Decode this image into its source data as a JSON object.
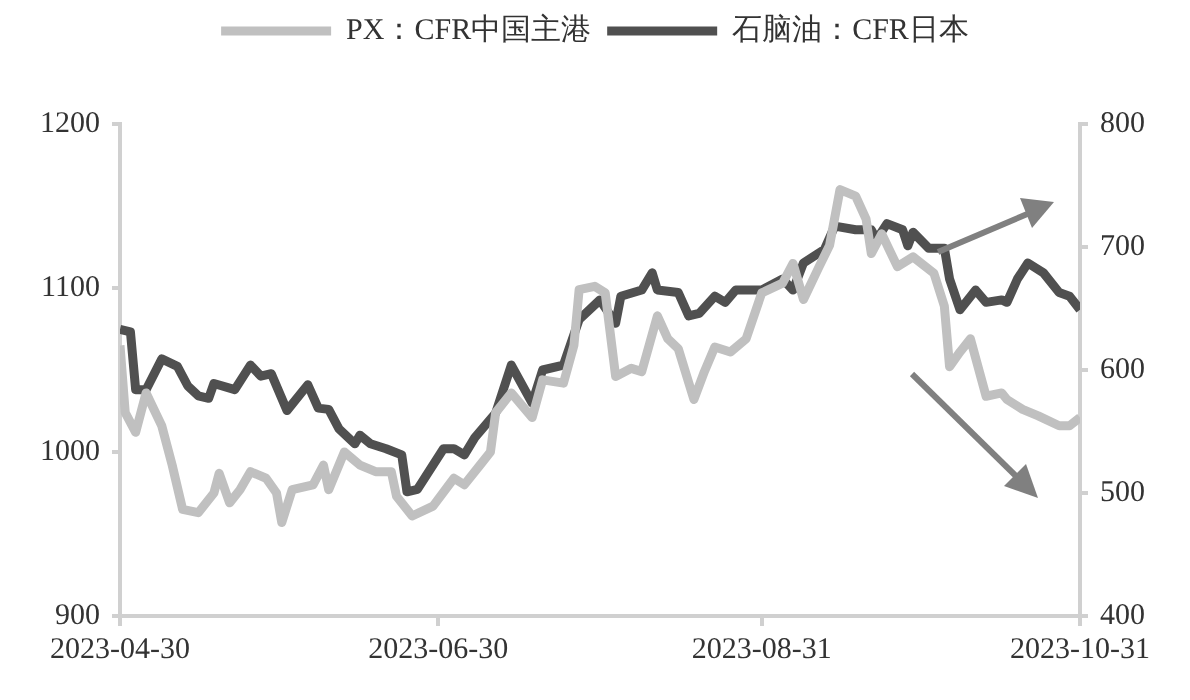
{
  "chart_data": {
    "type": "line",
    "legend": "top",
    "grid": false,
    "marker": "none",
    "line_style": "solid",
    "xlim": [
      "2023-04-30",
      "2023-10-31"
    ],
    "xticks": [
      "2023-04-30",
      "2023-06-30",
      "2023-08-31",
      "2023-10-31"
    ],
    "ylim": [
      900,
      1200
    ],
    "yticks": [
      900,
      1000,
      1100,
      1200
    ],
    "y2lim": [
      400,
      800
    ],
    "y2ticks": [
      400,
      500,
      600,
      700,
      800
    ],
    "series": [
      {
        "name": "PX：CFR中国主港",
        "color": "#c0c0c0",
        "x": [
          "2023-04-30",
          "2023-05-01",
          "2023-05-03",
          "2023-05-05",
          "2023-05-08",
          "2023-05-10",
          "2023-05-12",
          "2023-05-15",
          "2023-05-18",
          "2023-05-19",
          "2023-05-21",
          "2023-05-23",
          "2023-05-25",
          "2023-05-28",
          "2023-05-30",
          "2023-05-31",
          "2023-06-02",
          "2023-06-06",
          "2023-06-08",
          "2023-06-09",
          "2023-06-12",
          "2023-06-15",
          "2023-06-18",
          "2023-06-21",
          "2023-06-22",
          "2023-06-25",
          "2023-06-29",
          "2023-07-03",
          "2023-07-05",
          "2023-07-08",
          "2023-07-10",
          "2023-07-11",
          "2023-07-14",
          "2023-07-18",
          "2023-07-20",
          "2023-07-24",
          "2023-07-26",
          "2023-07-27",
          "2023-07-30",
          "2023-08-01",
          "2023-08-03",
          "2023-08-06",
          "2023-08-08",
          "2023-08-11",
          "2023-08-13",
          "2023-08-15",
          "2023-08-18",
          "2023-08-20",
          "2023-08-22",
          "2023-08-25",
          "2023-08-28",
          "2023-08-31",
          "2023-09-04",
          "2023-09-06",
          "2023-09-08",
          "2023-09-11",
          "2023-09-13",
          "2023-09-15",
          "2023-09-18",
          "2023-09-20",
          "2023-09-21",
          "2023-09-23",
          "2023-09-26",
          "2023-09-29",
          "2023-10-03",
          "2023-10-05",
          "2023-10-06",
          "2023-10-08",
          "2023-10-10",
          "2023-10-13",
          "2023-10-16",
          "2023-10-17",
          "2023-10-20",
          "2023-10-23",
          "2023-10-27",
          "2023-10-29",
          "2023-10-31"
        ],
        "values": [
          1065,
          1024,
          1012,
          1036,
          1016,
          992,
          965,
          963,
          975,
          987,
          969,
          977,
          988,
          984,
          975,
          957,
          977,
          980,
          992,
          977,
          1000,
          992,
          988,
          988,
          973,
          961,
          967,
          984,
          980,
          992,
          1000,
          1024,
          1036,
          1021,
          1044,
          1042,
          1065,
          1099,
          1101,
          1097,
          1046,
          1051,
          1049,
          1083,
          1069,
          1063,
          1032,
          1049,
          1064,
          1061,
          1069,
          1097,
          1103,
          1115,
          1093,
          1113,
          1126,
          1160,
          1156,
          1142,
          1121,
          1133,
          1113,
          1119,
          1109,
          1089,
          1052,
          1061,
          1069,
          1034,
          1036,
          1032,
          1026,
          1022,
          1016,
          1016,
          1021
        ]
      },
      {
        "name": "石脑油：CFR日本",
        "color": "#505050",
        "axis": "y2",
        "x": [
          "2023-04-30",
          "2023-05-02",
          "2023-05-03",
          "2023-05-05",
          "2023-05-08",
          "2023-05-11",
          "2023-05-13",
          "2023-05-15",
          "2023-05-17",
          "2023-05-18",
          "2023-05-22",
          "2023-05-25",
          "2023-05-27",
          "2023-05-29",
          "2023-06-01",
          "2023-06-05",
          "2023-06-07",
          "2023-06-09",
          "2023-06-11",
          "2023-06-14",
          "2023-06-15",
          "2023-06-17",
          "2023-06-20",
          "2023-06-23",
          "2023-06-24",
          "2023-06-26",
          "2023-07-01",
          "2023-07-03",
          "2023-07-05",
          "2023-07-07",
          "2023-07-11",
          "2023-07-14",
          "2023-07-18",
          "2023-07-20",
          "2023-07-24",
          "2023-07-27",
          "2023-07-31",
          "2023-08-03",
          "2023-08-04",
          "2023-08-08",
          "2023-08-10",
          "2023-08-11",
          "2023-08-15",
          "2023-08-17",
          "2023-08-19",
          "2023-08-22",
          "2023-08-24",
          "2023-08-26",
          "2023-08-31",
          "2023-09-04",
          "2023-09-06",
          "2023-09-08",
          "2023-09-12",
          "2023-09-14",
          "2023-09-18",
          "2023-09-21",
          "2023-09-22",
          "2023-09-24",
          "2023-09-27",
          "2023-09-28",
          "2023-09-29",
          "2023-10-02",
          "2023-10-05",
          "2023-10-06",
          "2023-10-08",
          "2023-10-11",
          "2023-10-13",
          "2023-10-16",
          "2023-10-17",
          "2023-10-19",
          "2023-10-21",
          "2023-10-24",
          "2023-10-27",
          "2023-10-29",
          "2023-10-31"
        ],
        "values": [
          633,
          631,
          584,
          584,
          609,
          603,
          587,
          579,
          577,
          589,
          584,
          604,
          595,
          597,
          567,
          588,
          569,
          568,
          552,
          540,
          547,
          540,
          536,
          531,
          501,
          503,
          536,
          536,
          531,
          545,
          565,
          604,
          573,
          600,
          604,
          641,
          657,
          638,
          660,
          665,
          679,
          665,
          663,
          644,
          646,
          660,
          655,
          665,
          665,
          674,
          665,
          687,
          698,
          717,
          714,
          714,
          706,
          719,
          714,
          701,
          712,
          699,
          699,
          674,
          649,
          665,
          655,
          657,
          655,
          674,
          687,
          679,
          663,
          660,
          649
        ]
      }
    ]
  }
}
